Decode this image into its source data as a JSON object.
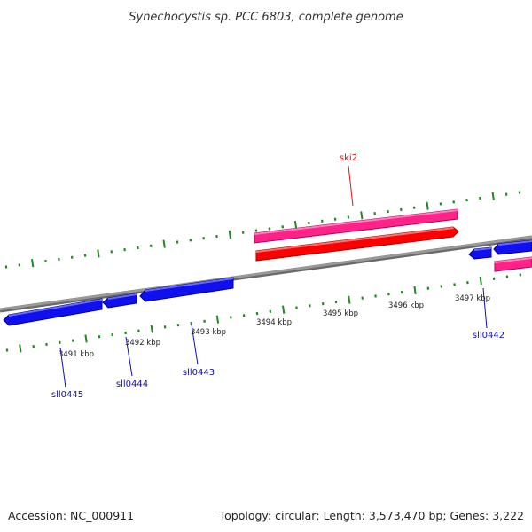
{
  "title": "Synechocystis sp. PCC 6803, complete genome",
  "footer": {
    "accession": "Accession: NC_000911",
    "summary": "Topology: circular; Length: 3,573,470 bp; Genes: 3,222"
  },
  "colors": {
    "backbone": "#8a8a8a",
    "tick": "#1f8a1f",
    "gene_forward": "#ff2288",
    "gene_forward_cds": "#ff0000",
    "gene_reverse": "#1010ee",
    "label_forward": "#d01010",
    "label_reverse": "#1010aa"
  },
  "scale": {
    "unit": "kbp",
    "ticks": [
      {
        "pos": 3491,
        "label": "3491 kbp"
      },
      {
        "pos": 3492,
        "label": "3492 kbp"
      },
      {
        "pos": 3493,
        "label": "3493 kbp"
      },
      {
        "pos": 3494,
        "label": "3494 kbp"
      },
      {
        "pos": 3495,
        "label": "3495 kbp"
      },
      {
        "pos": 3496,
        "label": "3496 kbp"
      },
      {
        "pos": 3497,
        "label": "3497 kbp"
      }
    ]
  },
  "genes": [
    {
      "name": "ski2",
      "strand": "forward"
    },
    {
      "name": "sll0442",
      "strand": "reverse"
    },
    {
      "name": "sll0443",
      "strand": "reverse"
    },
    {
      "name": "sll0444",
      "strand": "reverse"
    },
    {
      "name": "sll0445",
      "strand": "reverse"
    }
  ]
}
